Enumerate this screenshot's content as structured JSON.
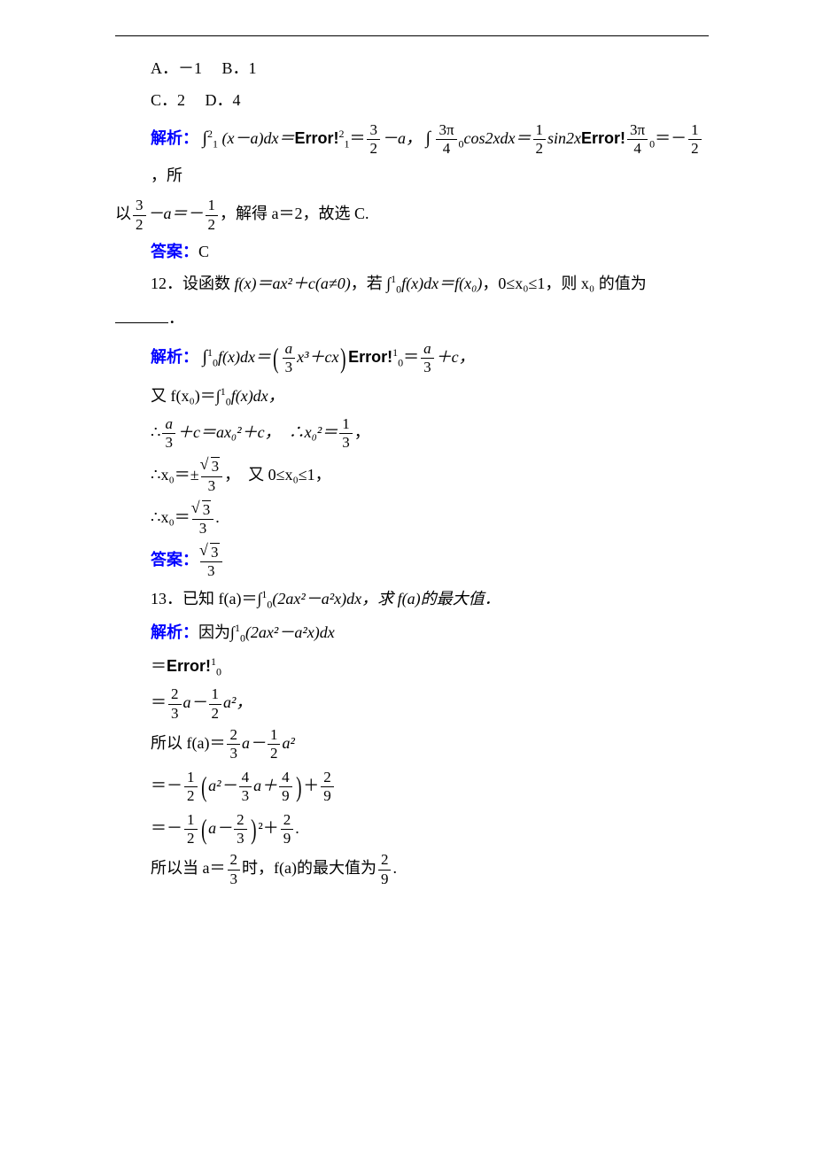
{
  "options": {
    "a": "A．－1",
    "b": "B．1",
    "c": "C．2",
    "d": "D．4"
  },
  "labels": {
    "jiexi": "解析：",
    "daan": "答案："
  },
  "q11": {
    "jiexi_part1": "∫",
    "int_upper1": "2",
    "int_lower1": "1",
    "expr1": "(x－a)dx＝",
    "error1": "Error!",
    "sup1": "2",
    "int_lower1b": "1",
    "eq1": "＝",
    "frac1_num": "3",
    "frac1_den": "2",
    "minus_a": "－a，",
    "int2": "∫",
    "frac2_num": "3π",
    "frac2_den": "4",
    "int2_lower": "0",
    "expr2": "cos2xdx＝",
    "frac3_num": "1",
    "frac3_den": "2",
    "sin2x": "sin2x",
    "error2": "Error!",
    "frac4_num": "3π",
    "frac4_den": "4",
    "zero": "0",
    "eq2": "＝－",
    "frac5_num": "1",
    "frac5_den": "2",
    "suo": "，所",
    "yi": "以",
    "frac6_num": "3",
    "frac6_den": "2",
    "minus_a2": "－a＝－",
    "frac7_num": "1",
    "frac7_den": "2",
    "conclusion": "，解得 a＝2，故选 C.",
    "answer": "C"
  },
  "q12": {
    "stem1": "12．设函数 ",
    "fx": "f(x)＝ax²＋c(a≠0)",
    "stem2": "，若 ∫",
    "int_upper": "1",
    "int_lower": "0",
    "fxdx": "f(x)dx＝f(x₀)",
    "stem3": "，0≤x₀≤1，则 x₀ 的值为",
    "jiexi_int": "∫",
    "jiexi_expr": "f(x)dx＝",
    "bracket_expr_num": "a",
    "bracket_expr_den": "3",
    "bracket_rest": "x³＋cx",
    "error": "Error!",
    "errsup": "1",
    "errsub": "0",
    "eq1": "＝",
    "frac_a_num": "a",
    "frac_a_den": "3",
    "plus_c": "＋c，",
    "line2": "又 f(x₀)＝∫",
    "line2_rest": "f(x)dx，",
    "line3a": "∴",
    "line3_frac_num": "a",
    "line3_frac_den": "3",
    "line3b": "＋c＝ax₀²＋c，　∴x₀²＝",
    "line3_frac2_num": "1",
    "line3_frac2_den": "3",
    "line3c": "，",
    "line4a": "∴x₀＝±",
    "sqrt3": "3",
    "line4_den": "3",
    "line4b": "，　又 0≤x₀≤1，",
    "line5a": "∴x₀＝",
    "line5b": ".",
    "answer_prefix": "答案："
  },
  "q13": {
    "stem": "13．已知 f(a)＝∫",
    "int_upper": "1",
    "int_lower": "0",
    "expr": "(2ax²－a²x)dx，求 f(a)的最大值．",
    "jiexi_pre": "因为∫",
    "jiexi_expr": "(2ax²－a²x)dx",
    "error_line": "＝",
    "error": "Error!",
    "errsup": "1",
    "errsub": "0",
    "eq1a": "＝",
    "f1_num": "2",
    "f1_den": "3",
    "eq1b": "a－",
    "f2_num": "1",
    "f2_den": "2",
    "eq1c": "a²，",
    "line2a": "所以 f(a)＝",
    "line2_f1_num": "2",
    "line2_f1_den": "3",
    "line2b": "a－",
    "line2_f2_num": "1",
    "line2_f2_den": "2",
    "line2c": "a²",
    "line3a": "＝－",
    "line3_f1_num": "1",
    "line3_f1_den": "2",
    "line3_inner_a": "a²－",
    "line3_f2_num": "4",
    "line3_f2_den": "3",
    "line3_inner_b": "a＋",
    "line3_f3_num": "4",
    "line3_f3_den": "9",
    "line3b": "＋",
    "line3_f4_num": "2",
    "line3_f4_den": "9",
    "line4a": "＝－",
    "line4_f1_num": "1",
    "line4_f1_den": "2",
    "line4_inner": "a－",
    "line4_f2_num": "2",
    "line4_f2_den": "3",
    "line4_sq": "²＋",
    "line4_f3_num": "2",
    "line4_f3_den": "9",
    "line4b": ".",
    "line5a": "所以当 a＝",
    "line5_f1_num": "2",
    "line5_f1_den": "3",
    "line5b": "时，f(a)的最大值为",
    "line5_f2_num": "2",
    "line5_f2_den": "9",
    "line5c": "."
  },
  "footer": {
    "left": "",
    "right": ""
  }
}
